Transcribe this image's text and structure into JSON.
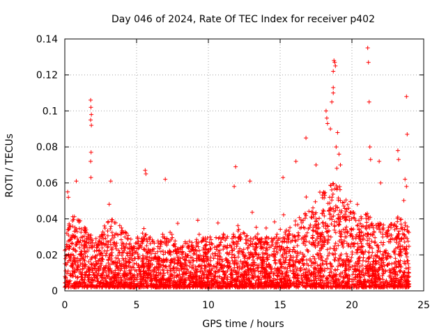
{
  "chart_data": {
    "type": "scatter",
    "title": "Day 046 of 2024, Rate Of TEC Index for receiver p402",
    "xlabel": "GPS time / hours",
    "ylabel": "ROTI / TECUs",
    "xlim": [
      0,
      25
    ],
    "ylim": [
      0,
      0.14
    ],
    "x_ticks": [
      0,
      5,
      10,
      15,
      20,
      25
    ],
    "x_tick_labels": [
      "0",
      "5",
      "10",
      "15",
      "20",
      "25"
    ],
    "y_ticks": [
      0,
      0.02,
      0.04,
      0.06,
      0.08,
      0.1,
      0.12,
      0.14
    ],
    "y_tick_labels": [
      "0",
      "0.02",
      "0.04",
      "0.06",
      "0.08",
      "0.1",
      "0.12",
      "0.14"
    ],
    "grid": true,
    "marker": "+",
    "series_color": "#ff0000",
    "envelope": {
      "x": [
        0,
        0.5,
        1,
        1.5,
        2,
        2.5,
        3,
        3.5,
        4,
        4.5,
        5,
        5.5,
        6,
        6.5,
        7,
        7.5,
        8,
        8.5,
        9,
        9.5,
        10,
        10.5,
        11,
        11.5,
        12,
        12.5,
        13,
        13.5,
        14,
        14.5,
        15,
        15.5,
        16,
        16.5,
        17,
        17.5,
        18,
        18.5,
        19,
        19.5,
        20,
        20.5,
        21,
        21.5,
        22,
        22.5,
        23,
        23.5,
        24
      ],
      "typical_max": [
        0.03,
        0.045,
        0.04,
        0.035,
        0.03,
        0.03,
        0.04,
        0.04,
        0.035,
        0.03,
        0.03,
        0.035,
        0.03,
        0.03,
        0.03,
        0.03,
        0.025,
        0.028,
        0.028,
        0.03,
        0.03,
        0.03,
        0.032,
        0.03,
        0.035,
        0.032,
        0.03,
        0.03,
        0.03,
        0.032,
        0.035,
        0.038,
        0.04,
        0.042,
        0.045,
        0.048,
        0.055,
        0.06,
        0.06,
        0.055,
        0.045,
        0.04,
        0.045,
        0.04,
        0.038,
        0.036,
        0.04,
        0.042,
        0.035
      ],
      "min": 0.002
    },
    "notable_points": [
      {
        "x": 1.8,
        "y": 0.106
      },
      {
        "x": 1.82,
        "y": 0.102
      },
      {
        "x": 1.85,
        "y": 0.098
      },
      {
        "x": 1.8,
        "y": 0.095
      },
      {
        "x": 1.85,
        "y": 0.092
      },
      {
        "x": 1.83,
        "y": 0.077
      },
      {
        "x": 1.8,
        "y": 0.072
      },
      {
        "x": 1.82,
        "y": 0.063
      },
      {
        "x": 0.2,
        "y": 0.055
      },
      {
        "x": 0.25,
        "y": 0.052
      },
      {
        "x": 0.8,
        "y": 0.061
      },
      {
        "x": 3.2,
        "y": 0.061
      },
      {
        "x": 5.6,
        "y": 0.067
      },
      {
        "x": 5.65,
        "y": 0.065
      },
      {
        "x": 7.0,
        "y": 0.062
      },
      {
        "x": 11.8,
        "y": 0.058
      },
      {
        "x": 11.9,
        "y": 0.069
      },
      {
        "x": 12.9,
        "y": 0.061
      },
      {
        "x": 15.2,
        "y": 0.063
      },
      {
        "x": 16.1,
        "y": 0.072
      },
      {
        "x": 16.8,
        "y": 0.085
      },
      {
        "x": 17.5,
        "y": 0.07
      },
      {
        "x": 18.2,
        "y": 0.1
      },
      {
        "x": 18.25,
        "y": 0.096
      },
      {
        "x": 18.3,
        "y": 0.093
      },
      {
        "x": 18.5,
        "y": 0.09
      },
      {
        "x": 18.6,
        "y": 0.105
      },
      {
        "x": 18.7,
        "y": 0.11
      },
      {
        "x": 18.7,
        "y": 0.113
      },
      {
        "x": 18.75,
        "y": 0.128
      },
      {
        "x": 18.8,
        "y": 0.127
      },
      {
        "x": 18.85,
        "y": 0.125
      },
      {
        "x": 18.7,
        "y": 0.122
      },
      {
        "x": 18.9,
        "y": 0.08
      },
      {
        "x": 19.0,
        "y": 0.088
      },
      {
        "x": 19.1,
        "y": 0.076
      },
      {
        "x": 19.2,
        "y": 0.07
      },
      {
        "x": 21.1,
        "y": 0.135
      },
      {
        "x": 21.15,
        "y": 0.127
      },
      {
        "x": 21.2,
        "y": 0.105
      },
      {
        "x": 21.25,
        "y": 0.08
      },
      {
        "x": 21.3,
        "y": 0.073
      },
      {
        "x": 21.9,
        "y": 0.072
      },
      {
        "x": 22.0,
        "y": 0.06
      },
      {
        "x": 23.2,
        "y": 0.078
      },
      {
        "x": 23.25,
        "y": 0.073
      },
      {
        "x": 23.8,
        "y": 0.108
      },
      {
        "x": 23.85,
        "y": 0.087
      },
      {
        "x": 23.7,
        "y": 0.062
      },
      {
        "x": 23.8,
        "y": 0.058
      }
    ]
  }
}
